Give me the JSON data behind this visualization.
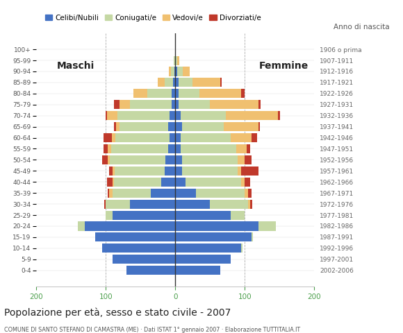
{
  "age_groups": [
    "0-4",
    "5-9",
    "10-14",
    "15-19",
    "20-24",
    "25-29",
    "30-34",
    "35-39",
    "40-44",
    "45-49",
    "50-54",
    "55-59",
    "60-64",
    "65-69",
    "70-74",
    "75-79",
    "80-84",
    "85-89",
    "90-94",
    "95-99",
    "100+"
  ],
  "birth_years": [
    "2002-2006",
    "1997-2001",
    "1992-1996",
    "1987-1991",
    "1982-1986",
    "1977-1981",
    "1972-1976",
    "1967-1971",
    "1962-1966",
    "1957-1961",
    "1952-1956",
    "1947-1951",
    "1942-1946",
    "1937-1941",
    "1932-1936",
    "1927-1931",
    "1922-1926",
    "1917-1921",
    "1912-1916",
    "1907-1911",
    "1906 o prima"
  ],
  "males": {
    "celibi": [
      70,
      90,
      105,
      115,
      130,
      90,
      65,
      35,
      20,
      15,
      14,
      10,
      8,
      10,
      8,
      5,
      5,
      3,
      1,
      0,
      0
    ],
    "coniugati": [
      0,
      0,
      0,
      0,
      10,
      10,
      35,
      55,
      68,
      72,
      80,
      82,
      78,
      70,
      75,
      60,
      35,
      12,
      5,
      2,
      0
    ],
    "vedovi": [
      0,
      0,
      0,
      0,
      0,
      0,
      0,
      5,
      2,
      3,
      3,
      5,
      5,
      5,
      15,
      15,
      20,
      10,
      3,
      0,
      0
    ],
    "divorziati": [
      0,
      0,
      0,
      0,
      0,
      0,
      2,
      2,
      8,
      5,
      8,
      6,
      12,
      3,
      2,
      8,
      0,
      0,
      0,
      0,
      0
    ]
  },
  "females": {
    "nubili": [
      65,
      80,
      95,
      110,
      120,
      80,
      50,
      30,
      15,
      10,
      10,
      8,
      8,
      10,
      8,
      5,
      5,
      5,
      3,
      1,
      0
    ],
    "coniugate": [
      0,
      0,
      2,
      2,
      25,
      20,
      55,
      70,
      80,
      80,
      80,
      80,
      72,
      60,
      65,
      45,
      30,
      20,
      8,
      2,
      0
    ],
    "vedove": [
      0,
      0,
      0,
      0,
      0,
      0,
      3,
      5,
      5,
      5,
      10,
      15,
      30,
      50,
      75,
      70,
      60,
      40,
      10,
      3,
      0
    ],
    "divorziate": [
      0,
      0,
      0,
      0,
      0,
      0,
      3,
      5,
      8,
      25,
      10,
      5,
      8,
      2,
      3,
      3,
      5,
      2,
      0,
      0,
      0
    ]
  },
  "colors": {
    "celibi": "#4472C4",
    "coniugati": "#C5D8A4",
    "vedovi": "#F0C070",
    "divorziati": "#C0392B"
  },
  "xlim": 200,
  "title": "Popolazione per età, sesso e stato civile - 2007",
  "subtitle": "COMUNE DI SANTO STEFANO DI CAMASTRA (ME) · Dati ISTAT 1° gennaio 2007 · Elaborazione TUTTITALIA.IT",
  "legend_labels": [
    "Celibi/Nubili",
    "Coniugati/e",
    "Vedovi/e",
    "Divorziati/e"
  ]
}
